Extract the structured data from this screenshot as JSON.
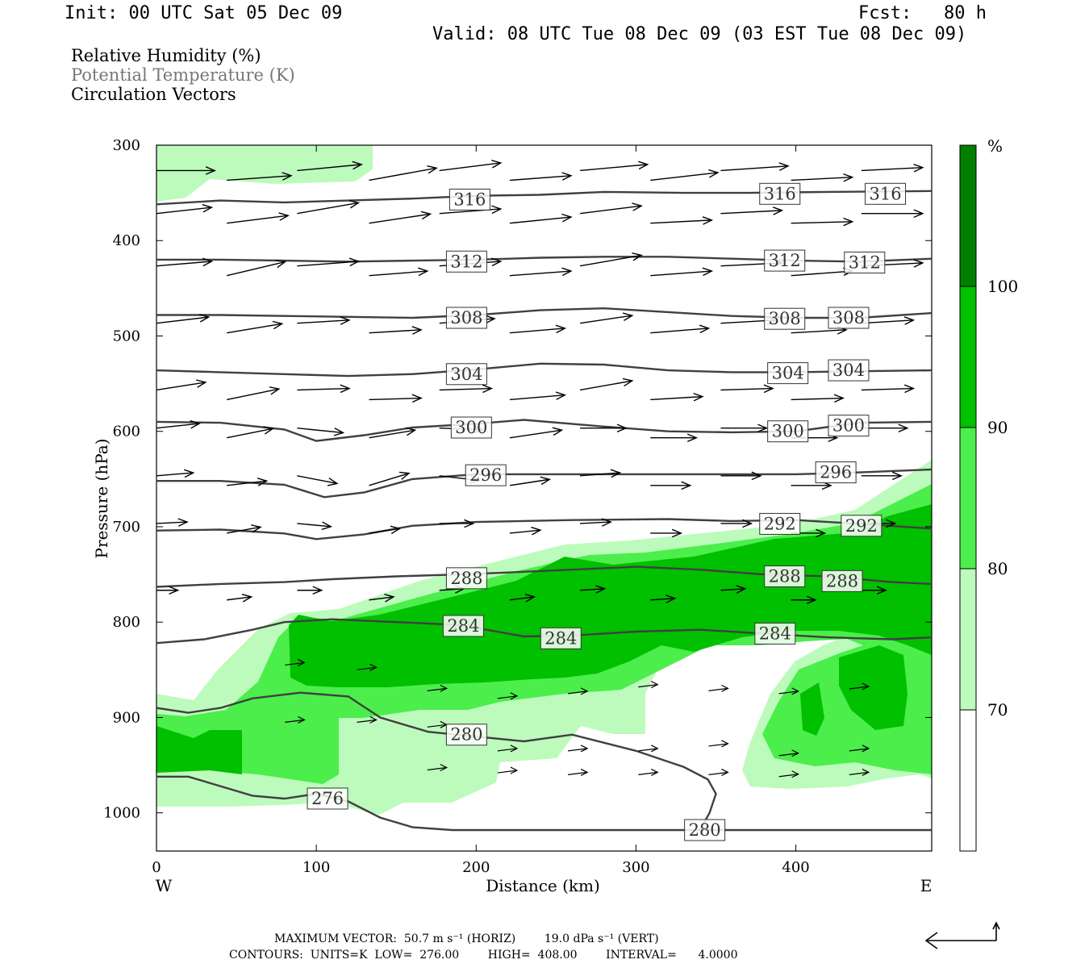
{
  "header": {
    "init": "Init: 00 UTC Sat 05 Dec 09",
    "fcst": "Fcst:   80 h",
    "valid": "Valid: 08 UTC Tue 08 Dec 09 (03 EST Tue 08 Dec 09)"
  },
  "legend": {
    "rh": "Relative Humidity (%)",
    "theta": "Potential Temperature (K)",
    "vectors": "Circulation Vectors"
  },
  "colors": {
    "bin_70_80": "#bdfbbd",
    "bin_80_90": "#4bee4b",
    "bin_90_100": "#00c000",
    "bin_100": "#008000",
    "theta_line": "#404040",
    "frame": "#000000"
  },
  "chart_data": {
    "type": "contour",
    "xlabel": "Distance (km)",
    "ylabel": "Pressure (hPa)",
    "xlim": [
      0,
      485
    ],
    "ylim": [
      1040,
      300
    ],
    "x_ticks": [
      "0",
      "100",
      "200",
      "300",
      "400"
    ],
    "y_ticks": [
      "300",
      "400",
      "500",
      "600",
      "700",
      "800",
      "900",
      "1000"
    ],
    "x_left_label": "W",
    "x_right_label": "E",
    "colorbar": {
      "unit": "%",
      "levels": [
        "70",
        "80",
        "90",
        "100"
      ]
    },
    "theta_contours": [
      {
        "label": "316",
        "points": [
          [
            0,
            362
          ],
          [
            40,
            358
          ],
          [
            80,
            360
          ],
          [
            120,
            358
          ],
          [
            160,
            356
          ],
          [
            200,
            353
          ],
          [
            240,
            352
          ],
          [
            280,
            349
          ],
          [
            330,
            350
          ],
          [
            370,
            350
          ],
          [
            420,
            349
          ],
          [
            485,
            348
          ]
        ],
        "labels_at": [
          [
            196,
            357
          ],
          [
            390,
            351
          ],
          [
            456,
            351
          ]
        ]
      },
      {
        "label": "312",
        "points": [
          [
            0,
            420
          ],
          [
            40,
            420
          ],
          [
            80,
            421
          ],
          [
            120,
            422
          ],
          [
            160,
            421
          ],
          [
            200,
            420
          ],
          [
            240,
            418
          ],
          [
            280,
            417
          ],
          [
            320,
            417
          ],
          [
            360,
            419
          ],
          [
            400,
            421
          ],
          [
            440,
            422
          ],
          [
            485,
            419
          ]
        ],
        "labels_at": [
          [
            194,
            422
          ],
          [
            393,
            421
          ],
          [
            443,
            423
          ]
        ]
      },
      {
        "label": "308",
        "points": [
          [
            0,
            478
          ],
          [
            40,
            478
          ],
          [
            80,
            479
          ],
          [
            120,
            480
          ],
          [
            160,
            481
          ],
          [
            200,
            478
          ],
          [
            240,
            473
          ],
          [
            280,
            471
          ],
          [
            320,
            475
          ],
          [
            360,
            479
          ],
          [
            400,
            481
          ],
          [
            440,
            481
          ],
          [
            485,
            476
          ]
        ],
        "labels_at": [
          [
            194,
            481
          ],
          [
            393,
            482
          ],
          [
            433,
            481
          ]
        ]
      },
      {
        "label": "304",
        "points": [
          [
            0,
            536
          ],
          [
            40,
            538
          ],
          [
            80,
            540
          ],
          [
            120,
            542
          ],
          [
            160,
            540
          ],
          [
            200,
            535
          ],
          [
            240,
            529
          ],
          [
            280,
            530
          ],
          [
            320,
            536
          ],
          [
            360,
            538
          ],
          [
            400,
            538
          ],
          [
            440,
            537
          ],
          [
            485,
            536
          ]
        ],
        "labels_at": [
          [
            194,
            540
          ],
          [
            395,
            539
          ],
          [
            433,
            536
          ]
        ]
      },
      {
        "label": "300",
        "points": [
          [
            0,
            590
          ],
          [
            40,
            591
          ],
          [
            80,
            598
          ],
          [
            100,
            610
          ],
          [
            130,
            604
          ],
          [
            160,
            596
          ],
          [
            200,
            592
          ],
          [
            230,
            588
          ],
          [
            280,
            595
          ],
          [
            320,
            600
          ],
          [
            360,
            601
          ],
          [
            400,
            600
          ],
          [
            440,
            591
          ],
          [
            485,
            590
          ]
        ],
        "labels_at": [
          [
            197,
            596
          ],
          [
            395,
            600
          ],
          [
            433,
            594
          ]
        ]
      },
      {
        "label": "296",
        "points": [
          [
            0,
            652
          ],
          [
            40,
            652
          ],
          [
            80,
            656
          ],
          [
            105,
            669
          ],
          [
            130,
            664
          ],
          [
            160,
            650
          ],
          [
            200,
            645
          ],
          [
            240,
            645
          ],
          [
            300,
            645
          ],
          [
            360,
            645
          ],
          [
            400,
            645
          ],
          [
            440,
            643
          ],
          [
            485,
            640
          ]
        ],
        "labels_at": [
          [
            206,
            646
          ],
          [
            425,
            643
          ]
        ]
      },
      {
        "label": "292",
        "points": [
          [
            0,
            704
          ],
          [
            40,
            703
          ],
          [
            80,
            707
          ],
          [
            100,
            713
          ],
          [
            130,
            708
          ],
          [
            160,
            699
          ],
          [
            200,
            695
          ],
          [
            260,
            693
          ],
          [
            320,
            692
          ],
          [
            360,
            694
          ],
          [
            400,
            693
          ],
          [
            440,
            697
          ],
          [
            485,
            702
          ]
        ],
        "labels_at": [
          [
            390,
            697
          ],
          [
            441,
            699
          ]
        ]
      },
      {
        "label": "288",
        "points": [
          [
            0,
            763
          ],
          [
            40,
            760
          ],
          [
            80,
            758
          ],
          [
            110,
            755
          ],
          [
            150,
            752
          ],
          [
            190,
            750
          ],
          [
            220,
            748
          ],
          [
            260,
            745
          ],
          [
            300,
            742
          ],
          [
            340,
            745
          ],
          [
            380,
            750
          ],
          [
            420,
            752
          ],
          [
            460,
            758
          ],
          [
            485,
            760
          ]
        ],
        "labels_at": [
          [
            194,
            754
          ],
          [
            393,
            752
          ],
          [
            429,
            757
          ]
        ]
      },
      {
        "label": "284",
        "points": [
          [
            0,
            822
          ],
          [
            30,
            818
          ],
          [
            60,
            808
          ],
          [
            80,
            800
          ],
          [
            110,
            797
          ],
          [
            150,
            800
          ],
          [
            190,
            803
          ],
          [
            230,
            815
          ],
          [
            260,
            814
          ],
          [
            300,
            810
          ],
          [
            340,
            808
          ],
          [
            380,
            812
          ],
          [
            420,
            816
          ],
          [
            460,
            818
          ],
          [
            485,
            816
          ]
        ],
        "labels_at": [
          [
            192,
            804
          ],
          [
            253,
            817
          ],
          [
            387,
            812
          ]
        ]
      },
      {
        "label": "280",
        "points": [
          [
            0,
            890
          ],
          [
            20,
            895
          ],
          [
            40,
            890
          ],
          [
            60,
            880
          ],
          [
            90,
            874
          ],
          [
            120,
            878
          ],
          [
            140,
            900
          ],
          [
            170,
            915
          ],
          [
            200,
            920
          ],
          [
            230,
            925
          ],
          [
            260,
            918
          ],
          [
            300,
            935
          ],
          [
            330,
            952
          ],
          [
            345,
            965
          ],
          [
            350,
            980
          ],
          [
            346,
            1000
          ],
          [
            340,
            1018
          ]
        ],
        "labels_at": [
          [
            194,
            918
          ]
        ]
      },
      {
        "label": "276",
        "points": [
          [
            0,
            962
          ],
          [
            20,
            962
          ],
          [
            40,
            972
          ],
          [
            60,
            982
          ],
          [
            80,
            985
          ],
          [
            100,
            980
          ],
          [
            120,
            988
          ],
          [
            140,
            1005
          ],
          [
            160,
            1015
          ],
          [
            185,
            1018
          ],
          [
            485,
            1018
          ]
        ],
        "labels_at": [
          [
            107,
            985
          ]
        ],
        "extra_labels_at": [
          [
            343,
            1018
          ]
        ],
        "extra_label": "280"
      }
    ],
    "vector_grid": {
      "x": [
        0,
        44,
        88,
        133,
        177,
        221,
        265,
        309,
        353,
        397,
        441,
        485
      ],
      "levels": [
        {
          "p": 330,
          "u": [
            38,
            42,
            42,
            44,
            40,
            40,
            44,
            44,
            44,
            40,
            40,
            40
          ],
          "w": [
            0,
            -3,
            -4,
            -8,
            -5,
            -3,
            -4,
            -5,
            -3,
            -2,
            -2,
            0
          ]
        },
        {
          "p": 375,
          "u": [
            36,
            40,
            40,
            40,
            40,
            40,
            40,
            40,
            40,
            40,
            40,
            40
          ],
          "w": [
            -4,
            -5,
            -7,
            -6,
            -3,
            -4,
            -5,
            -2,
            -2,
            -1,
            0,
            0
          ]
        },
        {
          "p": 430,
          "u": [
            36,
            38,
            40,
            38,
            40,
            40,
            40,
            40,
            40,
            40,
            40,
            40
          ],
          "w": [
            -3,
            -9,
            -3,
            -3,
            -3,
            -3,
            -7,
            -3,
            -2,
            -3,
            -2,
            0
          ]
        },
        {
          "p": 490,
          "u": [
            34,
            36,
            34,
            34,
            36,
            36,
            34,
            38,
            36,
            36,
            34,
            34
          ],
          "w": [
            -4,
            -6,
            -2,
            -2,
            -3,
            -3,
            -5,
            -3,
            -2,
            -2,
            -2,
            -2
          ]
        },
        {
          "p": 560,
          "u": [
            32,
            34,
            34,
            34,
            34,
            36,
            34,
            34,
            34,
            34,
            34,
            34
          ],
          "w": [
            -5,
            -7,
            -1,
            -1,
            -1,
            -3,
            -6,
            -2,
            -1,
            -1,
            -1,
            0
          ]
        },
        {
          "p": 600,
          "u": [
            28,
            30,
            30,
            30,
            28,
            34,
            30,
            30,
            30,
            30,
            30,
            30
          ],
          "w": [
            -3,
            -6,
            3,
            -5,
            1,
            -5,
            0,
            0,
            0,
            0,
            0,
            0
          ]
        },
        {
          "p": 650,
          "u": [
            24,
            26,
            26,
            26,
            26,
            26,
            26,
            26,
            26,
            26,
            26,
            26
          ],
          "w": [
            -2,
            -3,
            5,
            -8,
            3,
            -4,
            -2,
            0,
            0,
            0,
            0,
            0
          ]
        },
        {
          "p": 700,
          "u": [
            20,
            22,
            22,
            20,
            22,
            20,
            20,
            20,
            20,
            22,
            22,
            22
          ],
          "w": [
            -1,
            -4,
            2,
            -3,
            0,
            -2,
            -1,
            0,
            0,
            0,
            0,
            0
          ]
        },
        {
          "p": 770,
          "u": [
            14,
            16,
            16,
            16,
            16,
            16,
            16,
            16,
            16,
            16,
            16,
            16
          ],
          "w": [
            0,
            -2,
            0,
            -2,
            -1,
            -2,
            -1,
            -1,
            -1,
            0,
            0,
            0
          ]
        }
      ]
    },
    "footer": {
      "vector_line": "MAXIMUM VECTOR:  50.7 m s⁻¹ (HORIZ)        19.0 dPa s⁻¹ (VERT)",
      "contours_line": "CONTOURS:  UNITS=K  LOW=  276.00        HIGH=  408.00        INTERVAL=      4.0000"
    }
  }
}
